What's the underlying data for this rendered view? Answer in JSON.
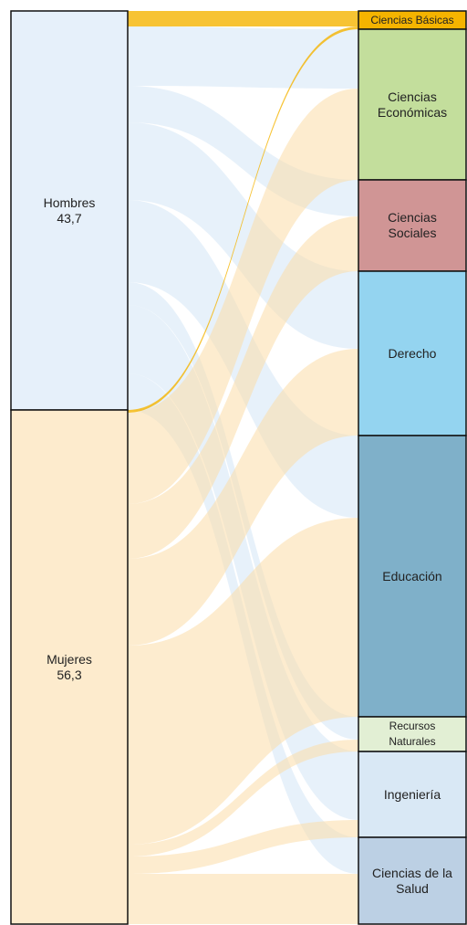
{
  "chart_data": {
    "type": "sankey",
    "sources": [
      {
        "name": "Hombres",
        "value": 43.7,
        "value_label": "43,7",
        "color": "#e6f0fa"
      },
      {
        "name": "Mujeres",
        "value": 56.3,
        "value_label": "56,3",
        "color": "#fdebcd"
      }
    ],
    "targets": [
      {
        "name": "Ciencias Básicas",
        "color": "#f5b400"
      },
      {
        "name": "Ciencias Económicas",
        "color": "#c3de9c"
      },
      {
        "name": "Ciencias Sociales",
        "color": "#d09595"
      },
      {
        "name": "Derecho",
        "color": "#94d4f0"
      },
      {
        "name": "Educación",
        "color": "#7fb0c9"
      },
      {
        "name": "Recursos Naturales",
        "color": "#e2efd4"
      },
      {
        "name": "Ingeniería",
        "color": "#d9e8f5"
      },
      {
        "name": "Ciencias de la Salud",
        "color": "#bcd0e4"
      }
    ],
    "links": [
      {
        "source": 0,
        "target": 0,
        "value": 1.7
      },
      {
        "source": 0,
        "target": 1,
        "value": 6.5
      },
      {
        "source": 0,
        "target": 2,
        "value": 4.0
      },
      {
        "source": 0,
        "target": 3,
        "value": 8.5
      },
      {
        "source": 0,
        "target": 4,
        "value": 9.0
      },
      {
        "source": 0,
        "target": 5,
        "value": 2.5
      },
      {
        "source": 0,
        "target": 6,
        "value": 7.5
      },
      {
        "source": 0,
        "target": 7,
        "value": 4.0
      },
      {
        "source": 1,
        "target": 0,
        "value": 0.3
      },
      {
        "source": 1,
        "target": 1,
        "value": 10.0
      },
      {
        "source": 1,
        "target": 2,
        "value": 6.0
      },
      {
        "source": 1,
        "target": 3,
        "value": 9.5
      },
      {
        "source": 1,
        "target": 4,
        "value": 21.8
      },
      {
        "source": 1,
        "target": 5,
        "value": 1.3
      },
      {
        "source": 1,
        "target": 6,
        "value": 1.9
      },
      {
        "source": 1,
        "target": 7,
        "value": 5.5
      }
    ]
  }
}
